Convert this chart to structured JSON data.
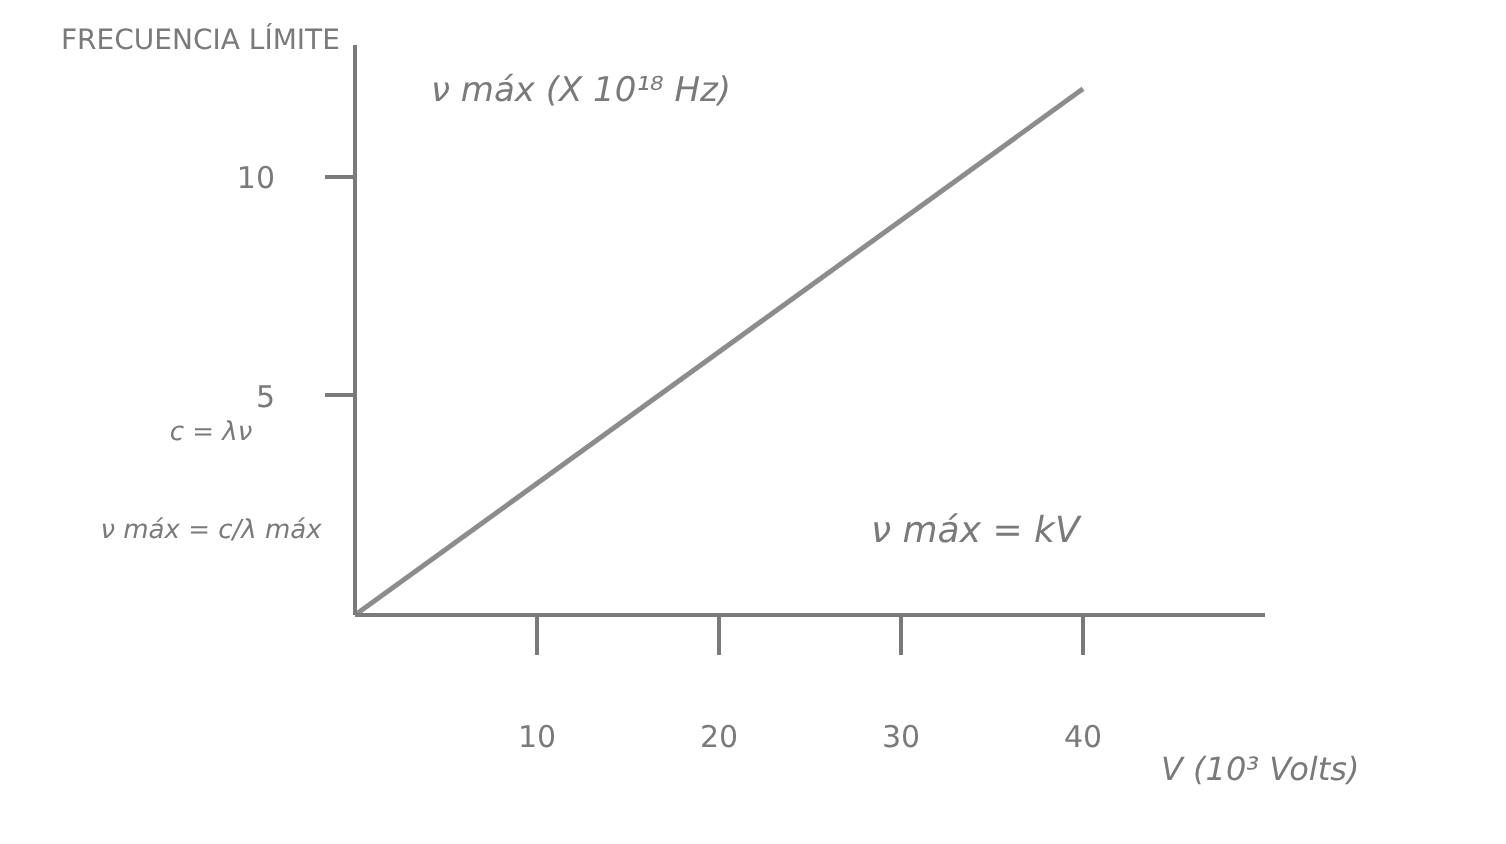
{
  "chart_data": {
    "type": "line",
    "title": "FRECUENCIA LÍMITE",
    "ylabel": "ν máx (X 10¹⁸ Hz)",
    "xlabel": "V (10³ Volts)",
    "annotations": [
      "ν máx = kV",
      "c = λν",
      "ν máx = c/λ máx"
    ],
    "x": [
      0,
      40
    ],
    "series": [
      {
        "color": "#8c8c8c",
        "values": [
          0,
          12
        ]
      }
    ],
    "xlim": [
      0,
      50
    ],
    "ylim": [
      0,
      13
    ],
    "xticks": [
      10,
      20,
      30,
      40
    ],
    "yticks": [
      5,
      10
    ],
    "grid": false,
    "marker": "none",
    "line_style": "solid"
  }
}
